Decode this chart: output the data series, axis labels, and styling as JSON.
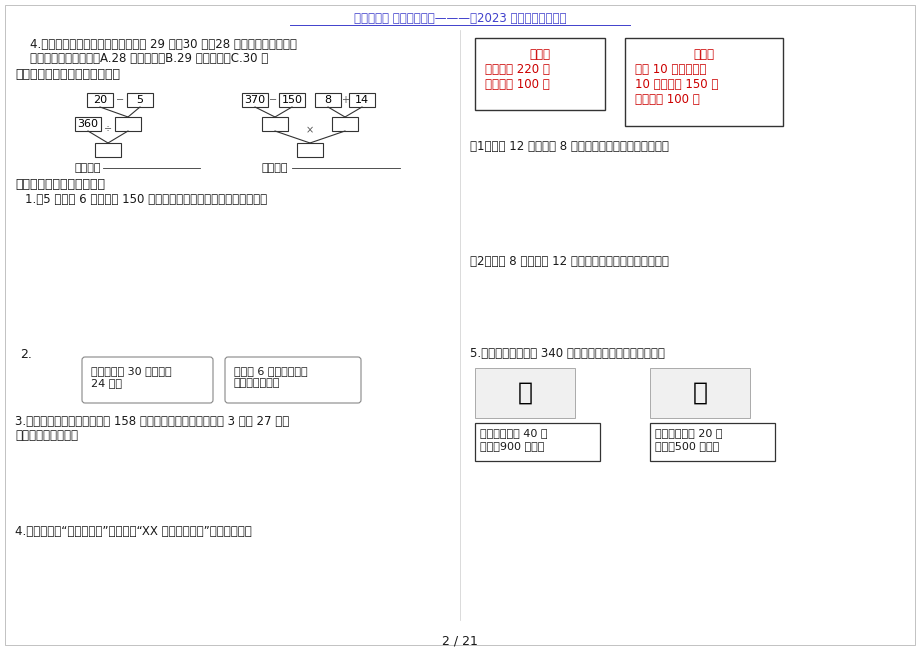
{
  "title": "《《《《《 小学学习资料———〠2023 年整理》》》》》",
  "page_bg": "#ffffff",
  "title_color": "#4040cc",
  "red_color": "#cc0000",
  "q4_line1": "4.　小强抛垒球，三次的成绩分别是 29 米、30 米、28 米，小强抛垒球的平",
  "q4_line2": "均成绩是（　　）。　A.28 米　　　　B.29 米　　　　C.30 米",
  "sec4": "四、先填空，再列出综合算式。",
  "sec5": "五、走进生活，解决问题。",
  "综合算式": "综合算式",
  "q51": "1.　5 辆卡车 6 次运水泥 150 吨，平均每辆卡车每次运水泥多少吨？",
  "q52_num": "2.",
  "q52_left": "我班有男生 30 人，女生\n24 人。",
  "q52_right": "如果每 6 人分一组，全\n班可以分几组？",
  "q53_line1": "3.小亮和小明集邮，小明集了 158 枚邮票，小亮集的比小明的 3 倍少 27 枚，",
  "q53_line2": "　小亮集了多少枚？",
  "q54": "4.某旅行社在“十一黄金周”期间推出“XX 风景区一日游”的两种方案。",
  "box1_title": "方案一",
  "box1_l1": "成人每人 220 元",
  "box1_l2": "儿童每人 100 元",
  "box2_title": "方案二",
  "box2_l1": "团体 10 人以上（含",
  "box2_l2": "10 人）每人 150 元",
  "box2_l3": "儿童每人 100 元",
  "q_s1": "（1）成人 12 人，儿童 8 人，选哪种方案购票比较合算？",
  "q_s2": "（2）成人 8 人，儿童 12 人，选哪种方案购票比较合算？",
  "q55": "5.希望小学组组全校 340 名师生春游，怎样租车最省錢？",
  "bus_l1": "大客车：限乘 40 人",
  "bus_l2": "租金：900 元／辆",
  "car_l1": "小客车：限乘 20 人",
  "car_l2": "租金：500 元／辆",
  "page_num": "2 / 21",
  "tree1_n1": "20",
  "tree1_n2": "5",
  "tree1_n3": "360",
  "tree2_n1": "370",
  "tree2_n2": "150",
  "tree2_n3": "8",
  "tree2_n4": "14"
}
